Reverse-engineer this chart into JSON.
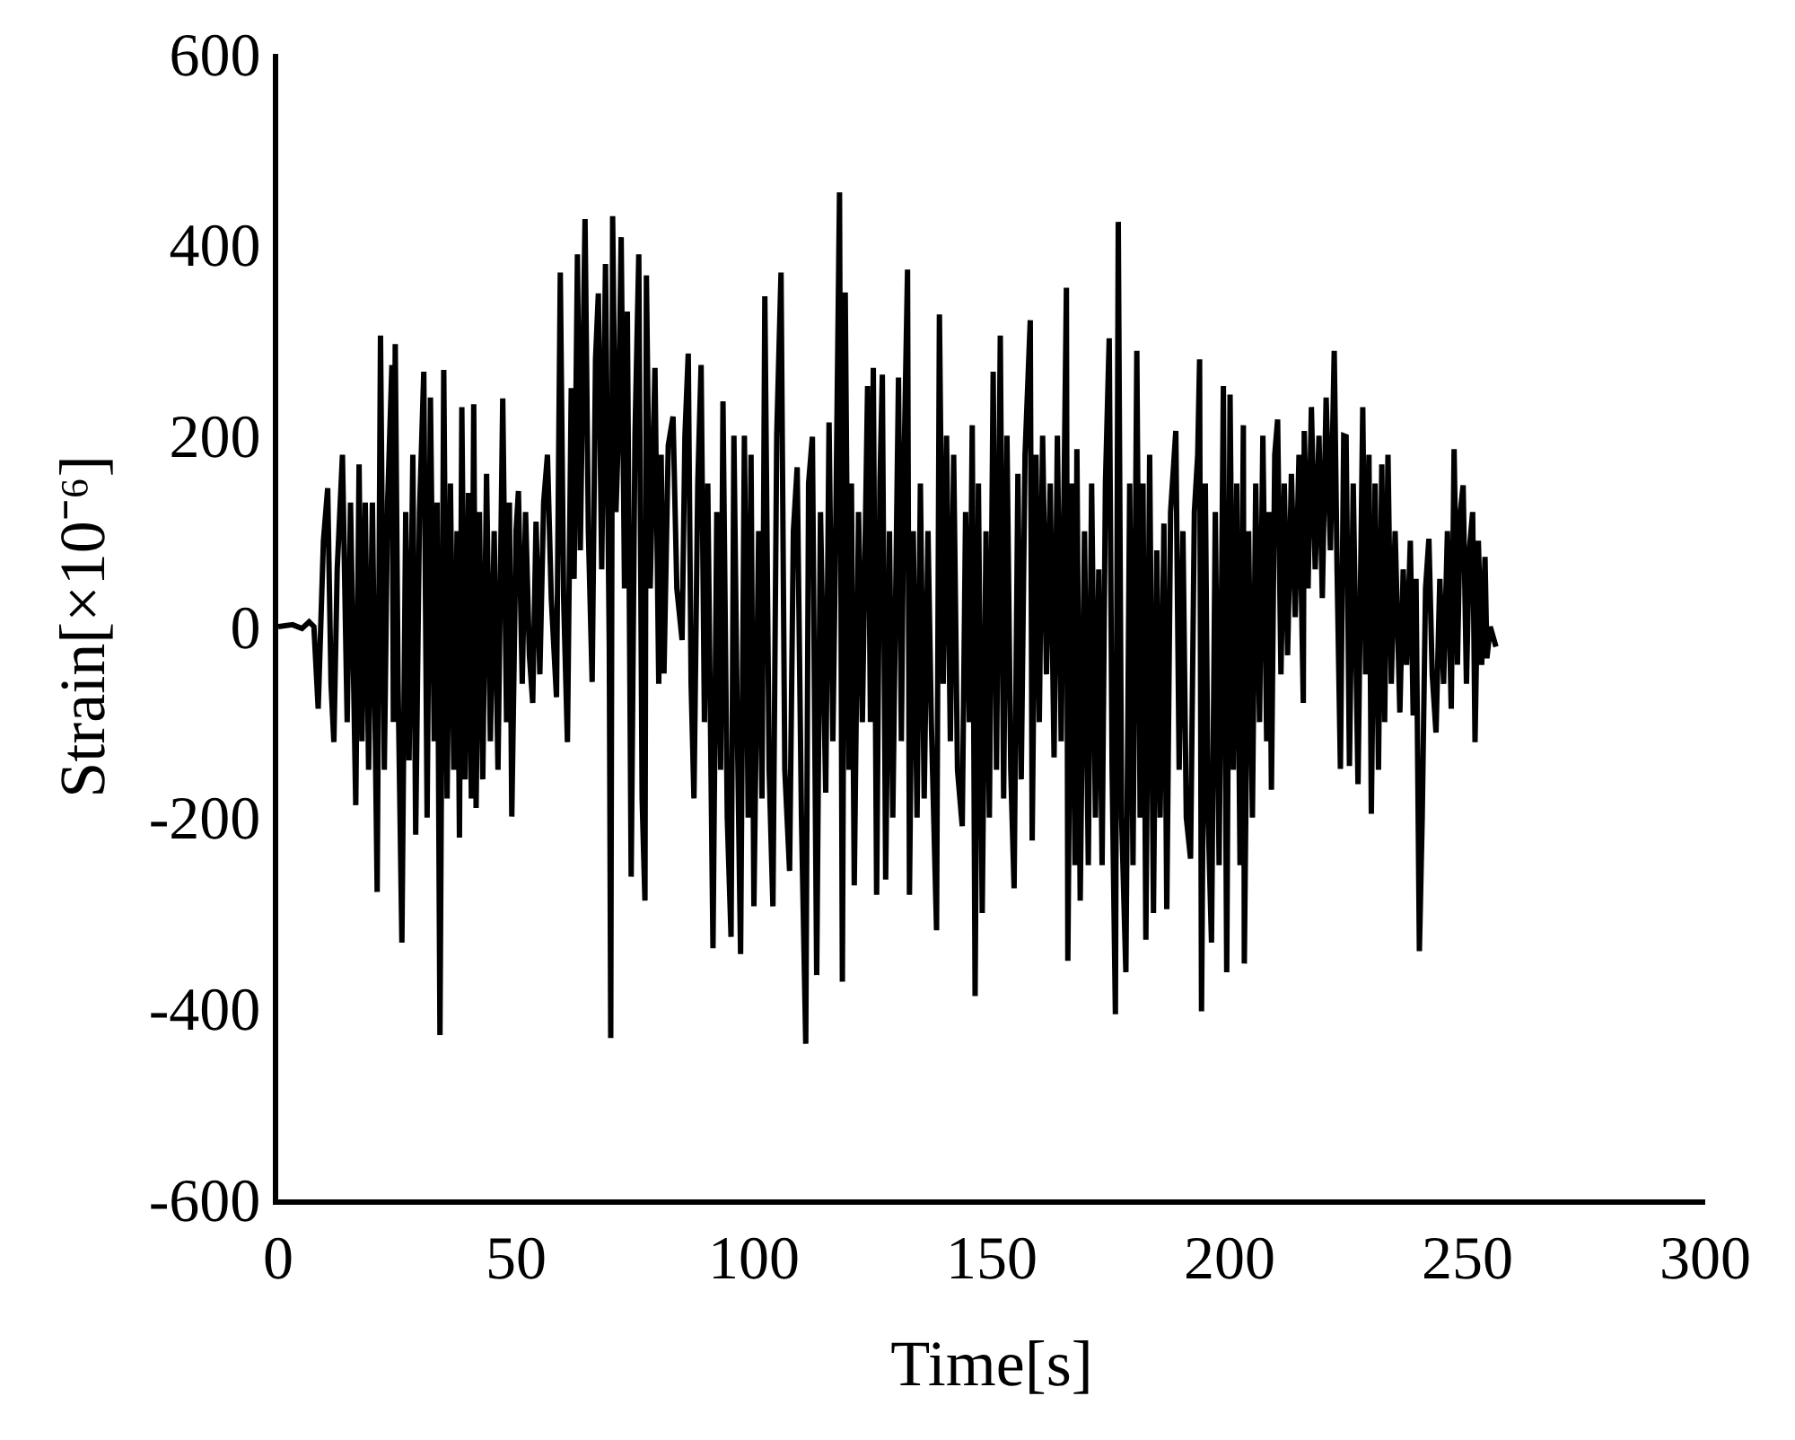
{
  "chart_data": {
    "type": "line",
    "xlabel": "Time[s]",
    "ylabel": "Strain[×10⁻⁶]",
    "x": [
      0,
      3,
      5,
      6.5,
      7.5,
      8.4,
      9.5,
      10.4,
      11.1,
      11.7,
      12.4,
      13.5,
      14.5,
      15.2,
      16.3,
      17.0,
      17.6,
      18.3,
      19.0,
      19.8,
      20.8,
      21.5,
      22.3,
      23.0,
      23.9,
      24.2,
      24.6,
      25.2,
      26.0,
      26.8,
      27.5,
      28.3,
      28.9,
      29.7,
      30.6,
      31.3,
      32.0,
      32.8,
      33.4,
      34.0,
      34.8,
      35.5,
      36.2,
      36.9,
      37.6,
      38.1,
      38.6,
      39.3,
      40.0,
      40.6,
      41.1,
      41.6,
      42.3,
      43.0,
      43.8,
      44.6,
      45.4,
      46.2,
      47.2,
      48.0,
      48.6,
      49.1,
      50.0,
      50.5,
      51.3,
      52.0,
      52.8,
      53.5,
      54.2,
      55.0,
      55.8,
      56.6,
      57.4,
      58.5,
      59.3,
      60.0,
      60.8,
      61.6,
      62.2,
      62.9,
      63.5,
      64.5,
      65.2,
      66.0,
      66.7,
      67.3,
      68.0,
      68.8,
      69.6,
      69.9,
      70.3,
      71.0,
      71.5,
      72.1,
      72.8,
      73.4,
      74.2,
      75.0,
      75.8,
      76.5,
      77.1,
      77.4,
      78.2,
      79.2,
      80.0,
      80.5,
      81.1,
      82.0,
      83.0,
      83.8,
      84.9,
      85.5,
      86.2,
      86.8,
      87.4,
      88.2,
      88.9,
      89.6,
      90.3,
      91.4,
      92.2,
      93.0,
      93.5,
      94.4,
      95.2,
      95.8,
      96.5,
      97.2,
      98.0,
      98.8,
      99.4,
      100.0,
      101.0,
      101.7,
      102.3,
      103.2,
      104.0,
      104.8,
      105.7,
      106.5,
      107.5,
      108.3,
      109.1,
      110.0,
      110.9,
      111.5,
      112.3,
      113.2,
      114.0,
      115.1,
      115.8,
      116.6,
      117.2,
      118.0,
      118.6,
      119.2,
      120.0,
      120.5,
      121.1,
      122.0,
      122.8,
      123.9,
      124.5,
      125.1,
      125.8,
      126.5,
      127.0,
      127.7,
      128.5,
      129.2,
      130.4,
      131.0,
      131.6,
      132.3,
      132.7,
      133.5,
      134.3,
      135.0,
      135.8,
      136.6,
      137.3,
      138.4,
      139.0,
      139.8,
      140.5,
      141.3,
      142.0,
      142.8,
      143.8,
      144.5,
      145.3,
      145.9,
      146.5,
      147.2,
      148.0,
      148.8,
      149.5,
      150.3,
      151.0,
      151.8,
      152.5,
      153.2,
      154.0,
      154.7,
      155.5,
      156.2,
      157.0,
      158.1,
      158.5,
      159.3,
      160.0,
      160.7,
      161.5,
      162.3,
      163.1,
      163.8,
      164.6,
      165.7,
      166.0,
      166.8,
      167.5,
      167.9,
      168.6,
      169.5,
      170.3,
      171.0,
      171.8,
      172.5,
      173.2,
      173.9,
      174.7,
      175.3,
      176.0,
      176.6,
      177.3,
      178.2,
      179.0,
      179.7,
      180.5,
      181.2,
      181.8,
      182.4,
      183.2,
      184.0,
      184.7,
      185.4,
      186.2,
      186.8,
      187.6,
      188.7,
      189.4,
      190.2,
      190.9,
      191.8,
      192.6,
      193.3,
      193.7,
      194.1,
      194.9,
      195.5,
      196.2,
      197.0,
      197.8,
      198.7,
      199.4,
      200.1,
      200.8,
      201.5,
      202.2,
      202.9,
      203.1,
      204.0,
      204.8,
      205.5,
      206.3,
      207.0,
      207.8,
      208.3,
      208.8,
      209.5,
      210.1,
      210.8,
      211.5,
      212.2,
      213.0,
      213.8,
      214.6,
      215.5,
      215.7,
      216.5,
      217.2,
      218.0,
      218.8,
      219.5,
      220.3,
      221.2,
      222.0,
      222.6,
      223.3,
      224.0,
      224.5,
      225.2,
      226.0,
      227.0,
      228.0,
      228.6,
      229.3,
      229.8,
      230.6,
      231.3,
      232.0,
      232.6,
      233.3,
      234.0,
      234.8,
      235.8,
      236.5,
      237.2,
      238.0,
      238.6,
      239.2,
      239.9,
      240.5,
      241.2,
      241.9,
      242.6,
      243.4,
      244.2,
      245.0,
      245.8,
      246.6,
      247.2,
      247.9,
      248.5,
      249.1,
      249.8,
      250.4,
      251.1,
      251.6,
      252.3,
      253.0,
      253.7,
      254.1,
      254.8,
      256.0
    ],
    "series": [
      {
        "color": "#000000",
        "values": [
          0,
          2,
          -2,
          5,
          0,
          -86,
          90,
          145,
          -60,
          -121,
          60,
          180,
          -100,
          130,
          -187,
          170,
          -120,
          130,
          -150,
          130,
          -278,
          305,
          -150,
          130,
          274,
          -100,
          296,
          -60,
          -331,
          120,
          -140,
          180,
          -218,
          120,
          267,
          -200,
          240,
          -120,
          130,
          -428,
          269,
          -180,
          150,
          -150,
          100,
          -221,
          230,
          -160,
          140,
          -180,
          233,
          -190,
          120,
          -160,
          160,
          -120,
          100,
          -150,
          239,
          -100,
          130,
          -199,
          100,
          142,
          -60,
          120,
          -30,
          -80,
          110,
          -50,
          130,
          180,
          30,
          -74,
          371,
          30,
          -121,
          250,
          50,
          390,
          80,
          427,
          100,
          -58,
          280,
          349,
          60,
          380,
          -20,
          -431,
          430,
          120,
          200,
          408,
          40,
          330,
          -262,
          200,
          390,
          -180,
          -287,
          368,
          40,
          271,
          -60,
          180,
          -49,
          190,
          220,
          40,
          -14,
          200,
          286,
          -60,
          -180,
          150,
          274,
          -100,
          150,
          -337,
          120,
          -150,
          236,
          -200,
          -325,
          200,
          -100,
          -343,
          200,
          -200,
          180,
          -293,
          100,
          -180,
          346,
          -150,
          -293,
          200,
          371,
          -150,
          -256,
          100,
          167,
          -200,
          -437,
          150,
          199,
          -365,
          120,
          -174,
          214,
          -120,
          100,
          455,
          -372,
          350,
          -150,
          150,
          -271,
          120,
          -100,
          252,
          -100,
          271,
          -281,
          150,
          264,
          -265,
          100,
          -200,
          261,
          -120,
          180,
          374,
          -281,
          100,
          -200,
          150,
          -180,
          100,
          -100,
          -318,
          327,
          -60,
          200,
          -120,
          180,
          -150,
          -209,
          120,
          -100,
          211,
          -387,
          150,
          -300,
          100,
          -200,
          267,
          -150,
          305,
          -180,
          200,
          -150,
          -274,
          160,
          -160,
          180,
          321,
          -224,
          180,
          -100,
          200,
          -50,
          150,
          -137,
          200,
          -120,
          355,
          -350,
          150,
          -250,
          186,
          -287,
          100,
          -250,
          150,
          -200,
          60,
          -250,
          150,
          302,
          -150,
          -406,
          424,
          -200,
          -362,
          150,
          -250,
          289,
          -200,
          150,
          -328,
          180,
          -300,
          80,
          -200,
          108,
          -296,
          120,
          205,
          -150,
          100,
          -200,
          -243,
          120,
          180,
          280,
          -403,
          150,
          -200,
          -331,
          120,
          -250,
          252,
          -362,
          243,
          -150,
          150,
          -250,
          211,
          -353,
          100,
          -200,
          150,
          -100,
          200,
          -120,
          120,
          -171,
          180,
          217,
          -50,
          150,
          -30,
          160,
          10,
          180,
          -80,
          205,
          40,
          230,
          60,
          200,
          30,
          240,
          80,
          289,
          60,
          -149,
          200,
          199,
          -146,
          150,
          -165,
          230,
          -50,
          180,
          -196,
          150,
          -150,
          170,
          -100,
          180,
          -60,
          100,
          -90,
          60,
          -40,
          90,
          -93,
          50,
          -340,
          -200,
          40,
          92,
          -50,
          -111,
          50,
          -60,
          100,
          -86,
          186,
          -40,
          120,
          148,
          -60,
          80,
          120,
          -121,
          90,
          -40,
          73,
          -33,
          0,
          -21
        ]
      }
    ],
    "xlim": [
      0,
      300
    ],
    "xticks": [
      0,
      50,
      100,
      150,
      200,
      250,
      300
    ],
    "ylim": [
      -600,
      600
    ],
    "yticks": [
      -600,
      -400,
      -200,
      0,
      200,
      400,
      600
    ],
    "line_style": "solid"
  }
}
